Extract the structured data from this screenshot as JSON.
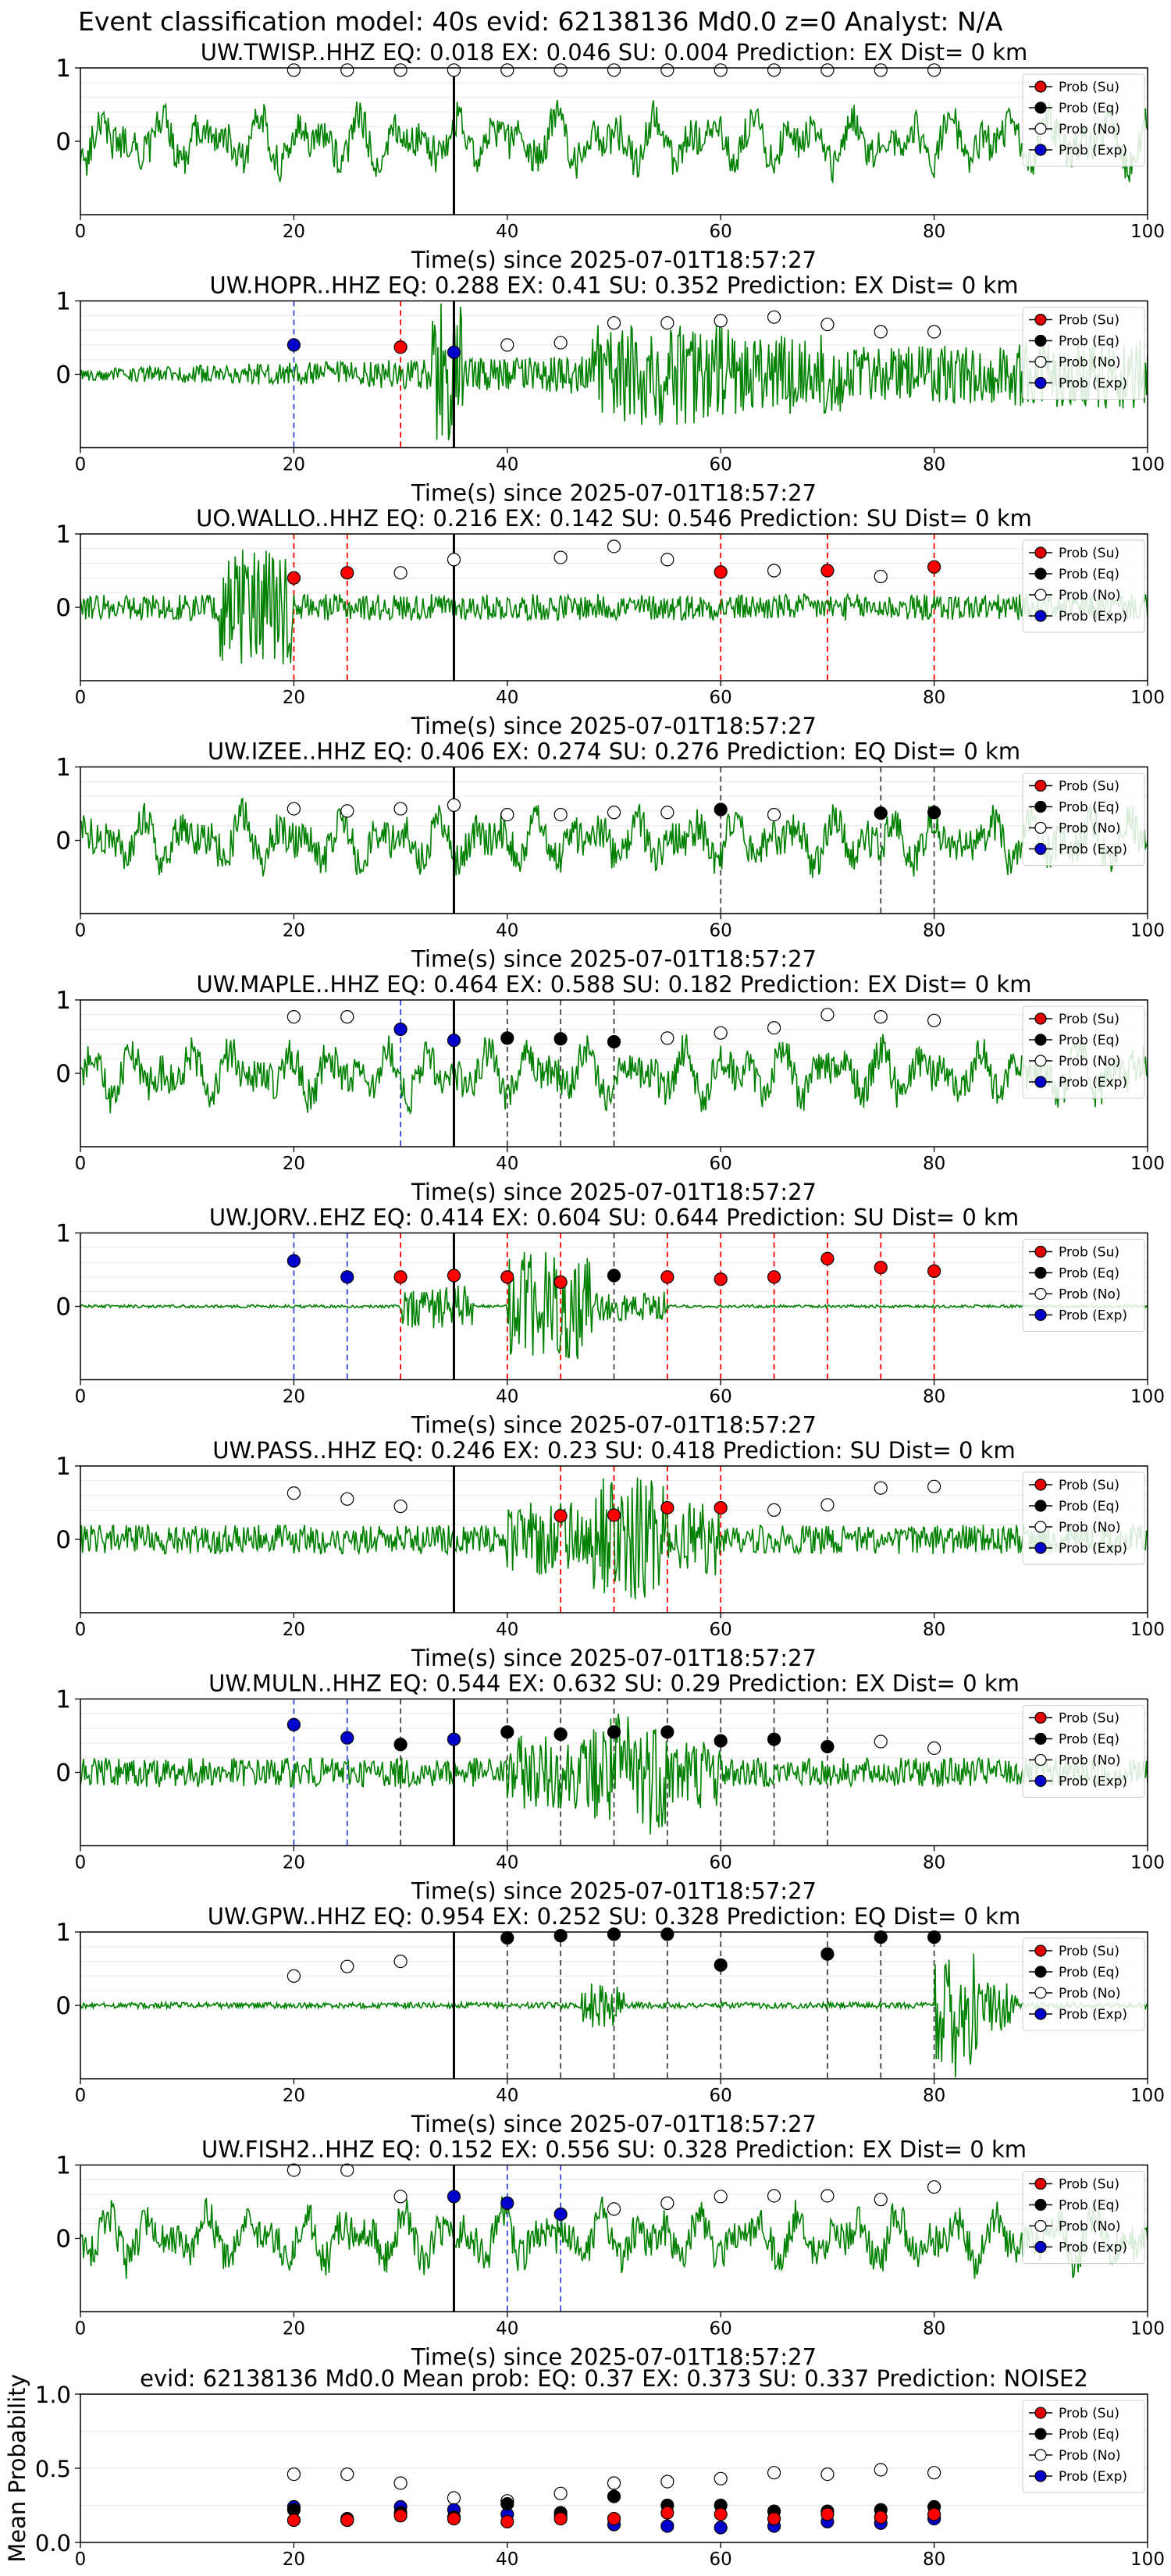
{
  "suptitle": "Event classification model: 40s evid: 62138136 Md0.0 z=0 Analyst: N/A",
  "legend": {
    "labels": [
      "Prob (Su)",
      "Prob (Eq)",
      "Prob (No)",
      "Prob (Exp)"
    ],
    "colors": [
      "#e00000",
      "#000000",
      "#ffffff",
      "#0000cc"
    ]
  },
  "colors": {
    "waveform": "#008000",
    "su": "#ff0000",
    "eq": "#000000",
    "no": "#ffffff",
    "exp": "#0000cc",
    "pick": "#000000"
  },
  "chart_data": [
    {
      "type": "line",
      "title": "UW.TWISP..HHZ   EQ: 0.018   EX: 0.046   SU: 0.004   Prediction: EX    Dist= 0 km",
      "xlabel": "Time(s) since 2025-07-01T18:57:27",
      "xlim": [
        0,
        100
      ],
      "ylim": [
        -1,
        1
      ],
      "xticks": [
        0,
        20,
        40,
        60,
        80,
        100
      ],
      "yticks": [
        0,
        1
      ],
      "pick": 35,
      "amp_profile": "noisy",
      "points": {
        "no": [
          [
            20,
            0.97
          ],
          [
            25,
            0.97
          ],
          [
            30,
            0.97
          ],
          [
            35,
            0.97
          ],
          [
            40,
            0.97
          ],
          [
            45,
            0.97
          ],
          [
            50,
            0.97
          ],
          [
            55,
            0.97
          ],
          [
            60,
            0.97
          ],
          [
            65,
            0.97
          ],
          [
            70,
            0.97
          ],
          [
            75,
            0.97
          ],
          [
            80,
            0.97
          ]
        ],
        "su": [],
        "eq": [],
        "exp": []
      }
    },
    {
      "type": "line",
      "title": "UW.HOPR..HHZ   EQ: 0.288   EX: 0.41   SU: 0.352   Prediction: EX    Dist= 0 km",
      "xlabel": "Time(s) since 2025-07-01T18:57:27",
      "xlim": [
        0,
        100
      ],
      "ylim": [
        -1,
        1
      ],
      "xticks": [
        0,
        20,
        40,
        60,
        80,
        100
      ],
      "yticks": [
        0,
        1
      ],
      "pick": 35,
      "amp_profile": "burst",
      "points": {
        "exp": [
          [
            20,
            0.4
          ],
          [
            35,
            0.3
          ]
        ],
        "su": [
          [
            30,
            0.37
          ]
        ],
        "eq": [],
        "no": [
          [
            40,
            0.4
          ],
          [
            45,
            0.43
          ],
          [
            50,
            0.7
          ],
          [
            55,
            0.7
          ],
          [
            60,
            0.73
          ],
          [
            65,
            0.78
          ],
          [
            70,
            0.68
          ],
          [
            75,
            0.58
          ],
          [
            80,
            0.58
          ]
        ]
      }
    },
    {
      "type": "line",
      "title": "UO.WALLO..HHZ   EQ: 0.216   EX: 0.142   SU: 0.546   Prediction: SU    Dist= 0 km",
      "xlabel": "Time(s) since 2025-07-01T18:57:27",
      "xlim": [
        0,
        100
      ],
      "ylim": [
        -1,
        1
      ],
      "xticks": [
        0,
        20,
        40,
        60,
        80,
        100
      ],
      "yticks": [
        0,
        1
      ],
      "pick": 35,
      "amp_profile": "early",
      "points": {
        "su": [
          [
            20,
            0.4
          ],
          [
            25,
            0.47
          ],
          [
            60,
            0.48
          ],
          [
            70,
            0.5
          ],
          [
            80,
            0.55
          ]
        ],
        "no": [
          [
            30,
            0.47
          ],
          [
            35,
            0.65
          ],
          [
            45,
            0.68
          ],
          [
            50,
            0.83
          ],
          [
            55,
            0.65
          ],
          [
            65,
            0.5
          ],
          [
            75,
            0.42
          ]
        ],
        "eq": [],
        "exp": []
      }
    },
    {
      "type": "line",
      "title": "UW.IZEE..HHZ   EQ: 0.406   EX: 0.274   SU: 0.276   Prediction: EQ    Dist= 0 km",
      "xlabel": "Time(s) since 2025-07-01T18:57:27",
      "xlim": [
        0,
        100
      ],
      "ylim": [
        -1,
        1
      ],
      "xticks": [
        0,
        20,
        40,
        60,
        80,
        100
      ],
      "yticks": [
        0,
        1
      ],
      "pick": 35,
      "amp_profile": "noisy",
      "points": {
        "no": [
          [
            20,
            0.43
          ],
          [
            25,
            0.4
          ],
          [
            30,
            0.43
          ],
          [
            35,
            0.48
          ],
          [
            40,
            0.35
          ],
          [
            45,
            0.35
          ],
          [
            50,
            0.38
          ],
          [
            55,
            0.38
          ],
          [
            65,
            0.35
          ]
        ],
        "eq": [
          [
            60,
            0.42
          ],
          [
            75,
            0.37
          ],
          [
            80,
            0.38
          ]
        ],
        "su": [],
        "exp": []
      }
    },
    {
      "type": "line",
      "title": "UW.MAPLE..HHZ   EQ: 0.464   EX: 0.588   SU: 0.182   Prediction: EX    Dist= 0 km",
      "xlabel": "Time(s) since 2025-07-01T18:57:27",
      "xlim": [
        0,
        100
      ],
      "ylim": [
        -1,
        1
      ],
      "xticks": [
        0,
        20,
        40,
        60,
        80,
        100
      ],
      "yticks": [
        0,
        1
      ],
      "pick": 35,
      "amp_profile": "noisy",
      "points": {
        "no": [
          [
            20,
            0.77
          ],
          [
            25,
            0.77
          ],
          [
            55,
            0.48
          ],
          [
            60,
            0.55
          ],
          [
            65,
            0.62
          ],
          [
            70,
            0.8
          ],
          [
            75,
            0.77
          ],
          [
            80,
            0.72
          ]
        ],
        "exp": [
          [
            30,
            0.6
          ],
          [
            35,
            0.45
          ]
        ],
        "eq": [
          [
            40,
            0.48
          ],
          [
            45,
            0.47
          ],
          [
            50,
            0.43
          ]
        ],
        "su": []
      }
    },
    {
      "type": "line",
      "title": "UW.JORV..EHZ   EQ: 0.414   EX: 0.604   SU: 0.644   Prediction: SU    Dist= 0 km",
      "xlabel": "Time(s) since 2025-07-01T18:57:27",
      "xlim": [
        0,
        100
      ],
      "ylim": [
        -1,
        1
      ],
      "xticks": [
        0,
        20,
        40,
        60,
        80,
        100
      ],
      "yticks": [
        0,
        1
      ],
      "pick": 35,
      "amp_profile": "quiet",
      "points": {
        "exp": [
          [
            20,
            0.62
          ],
          [
            25,
            0.4
          ]
        ],
        "su": [
          [
            30,
            0.4
          ],
          [
            35,
            0.42
          ],
          [
            40,
            0.4
          ],
          [
            45,
            0.33
          ],
          [
            55,
            0.4
          ],
          [
            60,
            0.37
          ],
          [
            65,
            0.4
          ],
          [
            70,
            0.65
          ],
          [
            75,
            0.53
          ],
          [
            80,
            0.48
          ]
        ],
        "eq": [
          [
            50,
            0.42
          ]
        ],
        "no": []
      }
    },
    {
      "type": "line",
      "title": "UW.PASS..HHZ   EQ: 0.246   EX: 0.23   SU: 0.418   Prediction: SU    Dist= 0 km",
      "xlabel": "Time(s) since 2025-07-01T18:57:27",
      "xlim": [
        0,
        100
      ],
      "ylim": [
        -1,
        1
      ],
      "xticks": [
        0,
        20,
        40,
        60,
        80,
        100
      ],
      "yticks": [
        0,
        1
      ],
      "pick": 35,
      "amp_profile": "mid",
      "points": {
        "no": [
          [
            20,
            0.63
          ],
          [
            25,
            0.55
          ],
          [
            30,
            0.45
          ],
          [
            65,
            0.4
          ],
          [
            70,
            0.47
          ],
          [
            75,
            0.7
          ],
          [
            80,
            0.72
          ]
        ],
        "su": [
          [
            45,
            0.32
          ],
          [
            50,
            0.33
          ],
          [
            55,
            0.43
          ],
          [
            60,
            0.43
          ]
        ],
        "eq": [],
        "exp": []
      }
    },
    {
      "type": "line",
      "title": "UW.MULN..HHZ   EQ: 0.544   EX: 0.632   SU: 0.29   Prediction: EX    Dist= 0 km",
      "xlabel": "Time(s) since 2025-07-01T18:57:27",
      "xlim": [
        0,
        100
      ],
      "ylim": [
        -1,
        1
      ],
      "xticks": [
        0,
        20,
        40,
        60,
        80,
        100
      ],
      "yticks": [
        0,
        1
      ],
      "pick": 35,
      "amp_profile": "mid",
      "points": {
        "exp": [
          [
            20,
            0.65
          ],
          [
            25,
            0.47
          ],
          [
            35,
            0.45
          ]
        ],
        "eq": [
          [
            30,
            0.38
          ],
          [
            40,
            0.55
          ],
          [
            45,
            0.52
          ],
          [
            50,
            0.55
          ],
          [
            55,
            0.55
          ],
          [
            60,
            0.43
          ],
          [
            65,
            0.45
          ],
          [
            70,
            0.35
          ]
        ],
        "no": [
          [
            75,
            0.42
          ],
          [
            80,
            0.33
          ]
        ],
        "su": []
      }
    },
    {
      "type": "line",
      "title": "UW.GPW..HHZ   EQ: 0.954   EX: 0.252   SU: 0.328   Prediction: EQ    Dist= 0 km",
      "xlabel": "Time(s) since 2025-07-01T18:57:27",
      "xlim": [
        0,
        100
      ],
      "ylim": [
        -1,
        1
      ],
      "xticks": [
        0,
        20,
        40,
        60,
        80,
        100
      ],
      "yticks": [
        0,
        1
      ],
      "pick": 35,
      "amp_profile": "late",
      "points": {
        "no": [
          [
            20,
            0.4
          ],
          [
            25,
            0.53
          ],
          [
            30,
            0.6
          ]
        ],
        "eq": [
          [
            40,
            0.92
          ],
          [
            45,
            0.95
          ],
          [
            50,
            0.97
          ],
          [
            55,
            0.97
          ],
          [
            60,
            0.55
          ],
          [
            70,
            0.7
          ],
          [
            75,
            0.93
          ],
          [
            80,
            0.93
          ]
        ],
        "su": [],
        "exp": []
      }
    },
    {
      "type": "line",
      "title": "UW.FISH2..HHZ   EQ: 0.152   EX: 0.556   SU: 0.328   Prediction: EX    Dist= 0 km",
      "xlabel": "Time(s) since 2025-07-01T18:57:27",
      "xlim": [
        0,
        100
      ],
      "ylim": [
        -1,
        1
      ],
      "xticks": [
        0,
        20,
        40,
        60,
        80,
        100
      ],
      "yticks": [
        0,
        1
      ],
      "pick": 35,
      "amp_profile": "noisy",
      "points": {
        "no": [
          [
            20,
            0.93
          ],
          [
            25,
            0.93
          ],
          [
            30,
            0.57
          ],
          [
            50,
            0.4
          ],
          [
            55,
            0.48
          ],
          [
            60,
            0.57
          ],
          [
            65,
            0.58
          ],
          [
            70,
            0.58
          ],
          [
            75,
            0.53
          ],
          [
            80,
            0.7
          ]
        ],
        "exp": [
          [
            35,
            0.57
          ],
          [
            40,
            0.48
          ],
          [
            45,
            0.33
          ]
        ],
        "su": [],
        "eq": []
      }
    },
    {
      "type": "scatter",
      "title": "evid: 62138136  Md0.0   Mean prob:   EQ: 0.37  EX: 0.373  SU: 0.337   Prediction: NOISE2",
      "ylabel": "Mean Probability",
      "xlim": [
        0,
        100
      ],
      "ylim": [
        0,
        1
      ],
      "xticks": [
        0,
        20,
        40,
        60,
        80,
        100
      ],
      "yticks": [
        0,
        0.5,
        1
      ],
      "points": {
        "no": [
          [
            20,
            0.46
          ],
          [
            25,
            0.46
          ],
          [
            30,
            0.4
          ],
          [
            35,
            0.3
          ],
          [
            40,
            0.28
          ],
          [
            45,
            0.33
          ],
          [
            50,
            0.4
          ],
          [
            55,
            0.41
          ],
          [
            60,
            0.43
          ],
          [
            65,
            0.47
          ],
          [
            70,
            0.46
          ],
          [
            75,
            0.49
          ],
          [
            80,
            0.47
          ]
        ],
        "eq": [
          [
            20,
            0.22
          ],
          [
            25,
            0.16
          ],
          [
            30,
            0.2
          ],
          [
            35,
            0.17
          ],
          [
            40,
            0.26
          ],
          [
            45,
            0.2
          ],
          [
            50,
            0.31
          ],
          [
            55,
            0.25
          ],
          [
            60,
            0.25
          ],
          [
            65,
            0.21
          ],
          [
            70,
            0.21
          ],
          [
            75,
            0.22
          ],
          [
            80,
            0.24
          ]
        ],
        "exp": [
          [
            20,
            0.24
          ],
          [
            25,
            0.15
          ],
          [
            30,
            0.24
          ],
          [
            35,
            0.22
          ],
          [
            40,
            0.19
          ],
          [
            45,
            0.18
          ],
          [
            50,
            0.12
          ],
          [
            55,
            0.11
          ],
          [
            60,
            0.1
          ],
          [
            65,
            0.11
          ],
          [
            70,
            0.14
          ],
          [
            75,
            0.13
          ],
          [
            80,
            0.16
          ]
        ],
        "su": [
          [
            20,
            0.15
          ],
          [
            25,
            0.15
          ],
          [
            30,
            0.18
          ],
          [
            35,
            0.16
          ],
          [
            40,
            0.14
          ],
          [
            45,
            0.16
          ],
          [
            50,
            0.16
          ],
          [
            55,
            0.2
          ],
          [
            60,
            0.19
          ],
          [
            65,
            0.16
          ],
          [
            70,
            0.19
          ],
          [
            75,
            0.17
          ],
          [
            80,
            0.19
          ]
        ]
      }
    }
  ]
}
